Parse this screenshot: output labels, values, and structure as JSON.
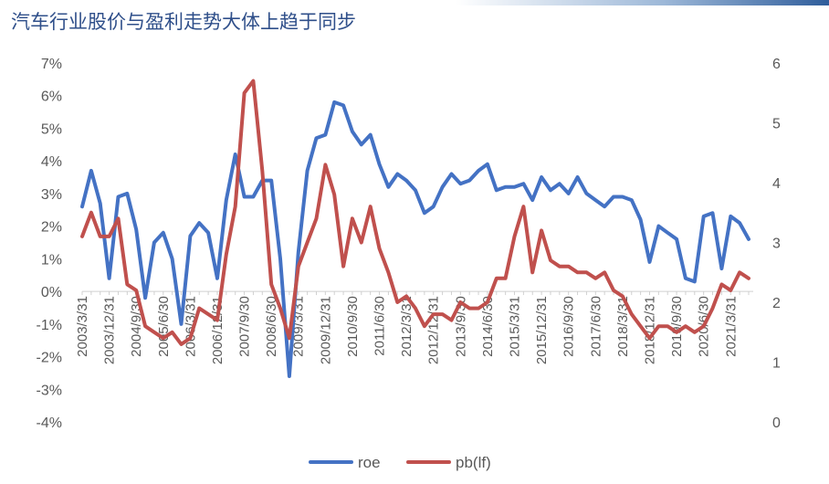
{
  "title": "汽车行业股价与盈利走势大体上趋于同步",
  "chart_data": {
    "type": "line",
    "title": "汽车行业股价与盈利走势大体上趋于同步",
    "xlabel": "",
    "ylabel": "",
    "y_left_ticks": [
      "7%",
      "6%",
      "5%",
      "4%",
      "3%",
      "2%",
      "1%",
      "0%",
      "-1%",
      "-2%",
      "-3%",
      "-4%"
    ],
    "y_left_range": [
      -4,
      7
    ],
    "y_right_ticks": [
      "6",
      "5",
      "4",
      "3",
      "2",
      "1",
      "0"
    ],
    "y_right_range": [
      0,
      6
    ],
    "x_tick_labels": [
      "2003/3/31",
      "2003/12/31",
      "2004/9/30",
      "2005/6/30",
      "2006/3/31",
      "2006/12/31",
      "2007/9/30",
      "2008/6/30",
      "2009/3/31",
      "2009/12/31",
      "2010/9/30",
      "2011/6/30",
      "2012/3/31",
      "2012/12/31",
      "2013/9/30",
      "2014/6/30",
      "2015/3/31",
      "2015/12/31",
      "2016/9/30",
      "2017/6/30",
      "2018/3/31",
      "2018/12/31",
      "2019/9/30",
      "2020/6/30",
      "2021/3/31"
    ],
    "x_tick_every": 3,
    "legend_position": "bottom",
    "grid": false,
    "series": [
      {
        "name": "roe",
        "axis": "left",
        "color": "#4472c4",
        "values": [
          2.6,
          3.7,
          2.7,
          0.4,
          2.9,
          3.0,
          1.9,
          -0.2,
          1.5,
          1.8,
          1.0,
          -1.0,
          1.7,
          2.1,
          1.8,
          0.4,
          2.8,
          4.2,
          2.9,
          2.9,
          3.4,
          3.4,
          1.0,
          -2.6,
          1.2,
          3.7,
          4.7,
          4.8,
          5.8,
          5.7,
          4.9,
          4.5,
          4.8,
          3.9,
          3.2,
          3.6,
          3.4,
          3.1,
          2.4,
          2.6,
          3.2,
          3.6,
          3.3,
          3.4,
          3.7,
          3.9,
          3.1,
          3.2,
          3.2,
          3.3,
          2.8,
          3.5,
          3.1,
          3.3,
          3.0,
          3.5,
          3.0,
          2.8,
          2.6,
          2.9,
          2.9,
          2.8,
          2.2,
          0.9,
          2.0,
          1.8,
          1.6,
          0.4,
          0.3,
          2.3,
          2.4,
          0.7,
          2.3,
          2.1,
          1.6
        ]
      },
      {
        "name": "pb(lf)",
        "axis": "right",
        "color": "#c0504d",
        "values": [
          3.1,
          3.5,
          3.1,
          3.1,
          3.4,
          2.3,
          2.2,
          1.6,
          1.5,
          1.4,
          1.5,
          1.3,
          1.4,
          1.9,
          1.8,
          1.7,
          2.8,
          3.6,
          5.5,
          5.7,
          4.2,
          2.3,
          1.9,
          1.4,
          2.6,
          3.0,
          3.4,
          4.3,
          3.8,
          2.6,
          3.4,
          3.0,
          3.6,
          2.9,
          2.5,
          2.0,
          2.1,
          1.9,
          1.6,
          1.8,
          1.8,
          1.7,
          2.0,
          1.9,
          1.9,
          2.0,
          2.4,
          2.4,
          3.1,
          3.6,
          2.5,
          3.2,
          2.7,
          2.6,
          2.6,
          2.5,
          2.5,
          2.4,
          2.5,
          2.2,
          2.1,
          1.8,
          1.6,
          1.4,
          1.6,
          1.6,
          1.5,
          1.6,
          1.5,
          1.6,
          1.9,
          2.3,
          2.2,
          2.5,
          2.4
        ]
      }
    ]
  }
}
